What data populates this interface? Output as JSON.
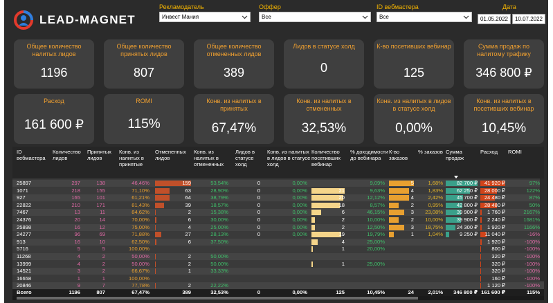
{
  "header": {
    "logo_text": "LEAD-MAGNET",
    "filters": [
      {
        "label": "Рекламодатель",
        "value": "Инвест Мания"
      },
      {
        "label": "Оффер",
        "value": "Все"
      },
      {
        "label": "ID вебмастера",
        "value": "Все"
      }
    ],
    "date_label": "Дата",
    "date_from": "01.05.2022",
    "date_to": "10.07.2022"
  },
  "kpis_row1": [
    {
      "title": "Общее количество налитых лидов",
      "value": "1196"
    },
    {
      "title": "Общее количество принятых лидов",
      "value": "807"
    },
    {
      "title": "Общее количество отмененных лидов",
      "value": "389"
    },
    {
      "title": "Лидов в статусе холд",
      "value": "0"
    },
    {
      "title": "К-во посетивших вебинар",
      "value": "125"
    },
    {
      "title": "Сумма продаж по налитому трафику",
      "value": "346 800 ₽"
    }
  ],
  "kpis_row2": [
    {
      "title": "Расход",
      "value": "161 600 ₽"
    },
    {
      "title": "ROMI",
      "value": "115%"
    },
    {
      "title": "Конв. из налитых в принятых",
      "value": "67,47%"
    },
    {
      "title": "Конв. из налитых в отмененных",
      "value": "32,53%"
    },
    {
      "title": "Конв. из налитых в лидов в статусе холд",
      "value": "0,00%"
    },
    {
      "title": "Конв. из налитых в посетивших вебинар",
      "value": "10,45%"
    }
  ],
  "table": {
    "headers": [
      "ID вебмастера",
      "Количество лидов",
      "Принятых лидов",
      "Конв. из налитых в принятые",
      "Отмененных лидов",
      "Конв. из налитых в отмененных",
      "Лидов в статусе холд",
      "Конв. из налитых в лидов в статусе холд",
      "Количество посетивших вебинар",
      "% доходимости до вебинара",
      "К-во заказов",
      "% заказов",
      "Сумма продаж",
      "Расход",
      "ROMI"
    ],
    "rows": [
      [
        "25897",
        "297",
        "138",
        "46,46%",
        "159",
        "53,54%",
        "0",
        "0,00%",
        "",
        "9,09%",
        "5",
        "1,68%",
        "82 700 ₽",
        "41 920 ₽",
        "97%"
      ],
      [
        "1071",
        "218",
        "155",
        "71,10%",
        "63",
        "28,90%",
        "0",
        "0,00%",
        "21",
        "9,63%",
        "4",
        "1,83%",
        "62 250 ₽",
        "28 000 ₽",
        "122%"
      ],
      [
        "927",
        "165",
        "101",
        "61,21%",
        "64",
        "38,79%",
        "0",
        "0,00%",
        "20",
        "12,12%",
        "4",
        "2,42%",
        "45 700 ₽",
        "24 480 ₽",
        "87%"
      ],
      [
        "22822",
        "210",
        "171",
        "81,43%",
        "39",
        "18,57%",
        "0",
        "0,00%",
        "18",
        "8,57%",
        "2",
        "0,95%",
        "42 800 ₽",
        "28 480 ₽",
        "50%"
      ],
      [
        "7467",
        "13",
        "11",
        "84,62%",
        "2",
        "15,38%",
        "0",
        "0,00%",
        "6",
        "46,15%",
        "3",
        "23,08%",
        "39 900 ₽",
        "1 760 ₽",
        "2167%"
      ],
      [
        "24376",
        "20",
        "14",
        "70,00%",
        "6",
        "30,00%",
        "0",
        "0,00%",
        "2",
        "10,00%",
        "2",
        "10,00%",
        "39 900 ₽",
        "2 240 ₽",
        "1681%"
      ],
      [
        "25898",
        "16",
        "12",
        "75,00%",
        "4",
        "25,00%",
        "0",
        "0,00%",
        "2",
        "12,50%",
        "3",
        "18,75%",
        "24 300 ₽",
        "1 920 ₽",
        "1166%"
      ],
      [
        "24277",
        "96",
        "69",
        "71,88%",
        "27",
        "28,13%",
        "0",
        "0,00%",
        "19",
        "19,79%",
        "1",
        "1,04%",
        "9 250 ₽",
        "11 040 ₽",
        "-16%"
      ],
      [
        "913",
        "16",
        "10",
        "62,50%",
        "6",
        "37,50%",
        "",
        "",
        "4",
        "25,00%",
        "",
        "",
        "",
        "1 920 ₽",
        "-100%"
      ],
      [
        "5716",
        "5",
        "5",
        "100,00%",
        "",
        "",
        "",
        "",
        "1",
        "20,00%",
        "",
        "",
        "",
        "800 ₽",
        "-100%"
      ],
      [
        "11268",
        "4",
        "2",
        "50,00%",
        "2",
        "50,00%",
        "",
        "",
        "",
        "",
        "",
        "",
        "",
        "320 ₽",
        "-100%"
      ],
      [
        "13999",
        "4",
        "2",
        "50,00%",
        "2",
        "50,00%",
        "",
        "",
        "1",
        "25,00%",
        "",
        "",
        "",
        "320 ₽",
        "-100%"
      ],
      [
        "14521",
        "3",
        "2",
        "66,67%",
        "1",
        "33,33%",
        "",
        "",
        "",
        "",
        "",
        "",
        "",
        "320 ₽",
        "-100%"
      ],
      [
        "16658",
        "1",
        "1",
        "100,00%",
        "",
        "",
        "",
        "",
        "",
        "",
        "",
        "",
        "",
        "160 ₽",
        "-100%"
      ],
      [
        "20846",
        "9",
        "7",
        "77,78%",
        "2",
        "22,22%",
        "",
        "",
        "",
        "",
        "",
        "",
        "",
        "1 120 ₽",
        "-100%"
      ]
    ],
    "total": [
      "Всего",
      "1196",
      "807",
      "67,47%",
      "389",
      "32,53%",
      "0",
      "0,00%",
      "125",
      "10,45%",
      "24",
      "2,01%",
      "346 800 ₽",
      "161 600 ₽",
      "115%"
    ]
  },
  "colors": {
    "accent": "#f0a030",
    "card_bg": "#3f3f3f",
    "bg": "#2b2b2b",
    "positive": "#3fc06a",
    "negative": "#e06aa6",
    "bar_cancel": "#c0502a",
    "bar_visit": "#f5d58a",
    "bar_orders": "#e8a030",
    "bar_sales": "#3aa08a",
    "bar_cost": "#d0441a"
  }
}
